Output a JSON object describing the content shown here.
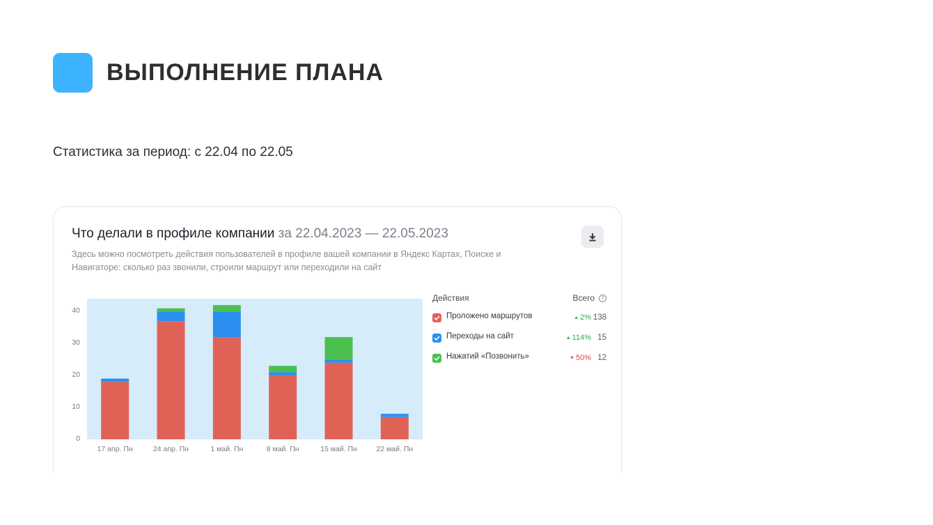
{
  "slide": {
    "title": "ВЫПОЛНЕНИЕ ПЛАНА",
    "subtitle": "Статистика за период: с 22.04 по 22.05",
    "accent_color": "#3db3ff"
  },
  "card": {
    "heading": "Что делали в профиле компании",
    "period": "за 22.04.2023 — 22.05.2023",
    "description": "Здесь можно посмотреть действия пользователей в профиле вашей компании в Яндекс Картах, Поиске и Навигаторе: сколько раз звонили, строили маршрут или переходили на сайт",
    "download_icon": "download-icon"
  },
  "legend": {
    "actions_header": "Действия",
    "total_header": "Всего",
    "help_glyph": "?",
    "items": [
      {
        "label": "Проложено маршрутов",
        "delta": "2%",
        "trend": "up",
        "total": "138",
        "color": "#e06257"
      },
      {
        "label": "Переходы на сайт",
        "delta": "114%",
        "trend": "up",
        "total": "15",
        "color": "#2b8ff0"
      },
      {
        "label": "Нажатий «Позвонить»",
        "delta": "50%",
        "trend": "down",
        "total": "12",
        "color": "#4cbf4f"
      }
    ],
    "up_color": "#2fae4e",
    "down_color": "#e8454a"
  },
  "chart_data": {
    "type": "bar",
    "stacked": true,
    "categories": [
      "17 апр. Пн",
      "24 апр. Пн",
      "1 май. Пн",
      "8 май. Пн",
      "15 май. Пн",
      "22 май. Пн"
    ],
    "series": [
      {
        "name": "Проложено маршрутов",
        "color": "#e06257",
        "values": [
          18,
          37,
          32,
          20,
          24,
          7
        ]
      },
      {
        "name": "Переходы на сайт",
        "color": "#2b8ff0",
        "values": [
          1,
          3,
          8,
          1,
          1,
          1
        ]
      },
      {
        "name": "Нажатий «Позвонить»",
        "color": "#4cbf4f",
        "values": [
          0,
          1,
          2,
          2,
          7,
          0
        ]
      }
    ],
    "yticks": [
      "0",
      "10",
      "20",
      "30",
      "40"
    ],
    "ylim": [
      0,
      44
    ],
    "grid": false,
    "background_color": "#d6ecfa"
  }
}
